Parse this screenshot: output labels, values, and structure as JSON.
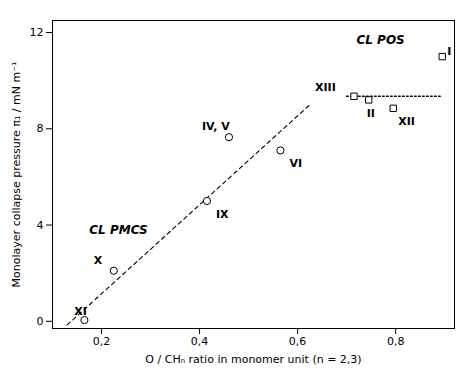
{
  "chart_data": {
    "type": "scatter",
    "xlabel": "O / CHₙ ratio in monomer unit (n = 2,3)",
    "ylabel": "Monolayer collapse pressure π₁ / mN m⁻¹",
    "xlim": [
      0.1,
      0.92
    ],
    "ylim": [
      -0.3,
      12.5
    ],
    "xticks": [
      {
        "value": 0.2,
        "label": "0,2"
      },
      {
        "value": 0.4,
        "label": "0,4"
      },
      {
        "value": 0.6,
        "label": "0,6"
      },
      {
        "value": 0.8,
        "label": "0,8"
      }
    ],
    "yticks": [
      0,
      4,
      8,
      12
    ],
    "grid": false,
    "series": [
      {
        "marker": "circle",
        "points": [
          {
            "label": "XI",
            "x": 0.165,
            "y": 0.05
          },
          {
            "label": "X",
            "x": 0.225,
            "y": 2.1
          },
          {
            "label": "IX",
            "x": 0.415,
            "y": 5.0
          },
          {
            "label": "IV, V",
            "x": 0.46,
            "y": 7.65
          },
          {
            "label": "VI",
            "x": 0.565,
            "y": 7.1
          }
        ]
      },
      {
        "marker": "square",
        "points": [
          {
            "label": "XIII",
            "x": 0.715,
            "y": 9.35
          },
          {
            "label": "II",
            "x": 0.745,
            "y": 9.2
          },
          {
            "label": "XII",
            "x": 0.795,
            "y": 8.85
          },
          {
            "label": "I",
            "x": 0.895,
            "y": 11.0
          }
        ]
      }
    ],
    "lines": [
      {
        "line_style": "dashed",
        "points": [
          [
            0.13,
            -0.15
          ],
          [
            0.625,
            9.0
          ]
        ]
      },
      {
        "line_style": "dotted",
        "points": [
          [
            0.7,
            9.35
          ],
          [
            0.895,
            9.35
          ]
        ]
      }
    ],
    "annotations": [
      {
        "text": "CL PMCS",
        "x": 0.175,
        "y": 3.8
      },
      {
        "text": "CL POS",
        "x": 0.72,
        "y": 11.7
      }
    ]
  }
}
